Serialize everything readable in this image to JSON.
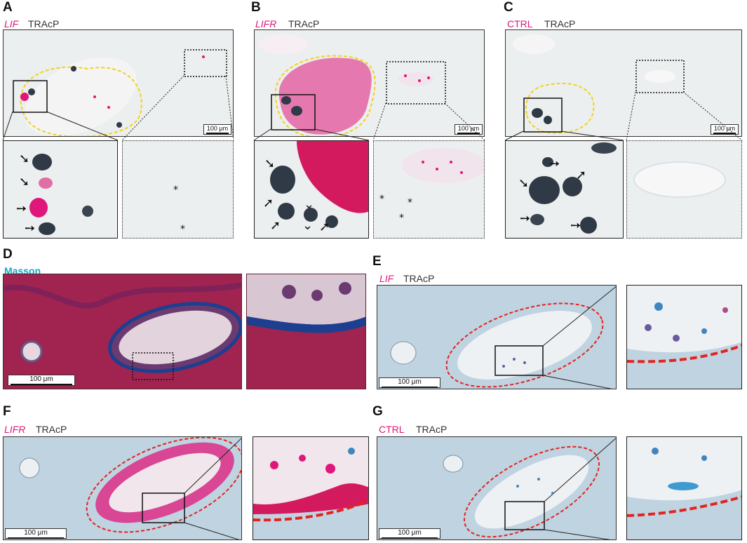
{
  "panels": {
    "A": {
      "letter": "A",
      "stain1": "LIF",
      "stain2": "TRAcP",
      "scale": "100 μm"
    },
    "B": {
      "letter": "B",
      "stain1": "LIFR",
      "stain2": "TRAcP",
      "scale": "100 μm"
    },
    "C": {
      "letter": "C",
      "stain1": "CTRL",
      "stain2": "TRAcP",
      "scale": "100 μm"
    },
    "D": {
      "letter": "D",
      "stain1": "Masson",
      "scale": "100 μm"
    },
    "E": {
      "letter": "E",
      "stain1": "LIF",
      "stain2": "TRAcP",
      "scale": "100 μm"
    },
    "F": {
      "letter": "F",
      "stain1": "LIFR",
      "stain2": "TRAcP",
      "scale": "100 μm"
    },
    "G": {
      "letter": "G",
      "stain1": "CTRL",
      "stain2": "TRAcP",
      "scale": "100 μm"
    }
  },
  "annotations": {
    "arrow": "arrow-icon",
    "asterisk": "*",
    "arrowhead": "arrowhead-icon"
  },
  "colors": {
    "lif_pink": "#e0177a",
    "masson_cyan": "#16a8c6",
    "outline_yellow": "#f2d21b",
    "outline_red": "#e4231f",
    "trap_dark": "#2f3a46"
  }
}
